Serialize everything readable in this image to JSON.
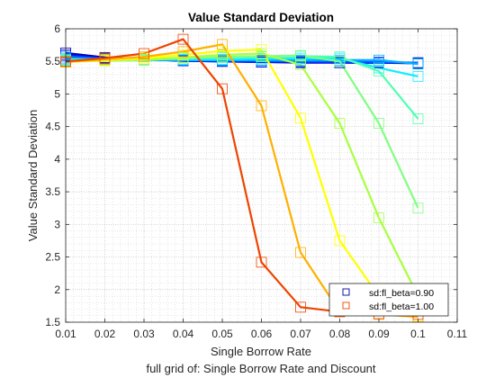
{
  "chart_data": {
    "type": "line",
    "title": "Value Standard Deviation",
    "xlabel": "Single Borrow Rate",
    "ylabel": "Value Standard Deviation",
    "caption": "full grid of: Single Borrow Rate and Discount",
    "xlim": [
      0.01,
      0.11
    ],
    "ylim": [
      1.5,
      6
    ],
    "xticks": [
      "0.01",
      "0.02",
      "0.03",
      "0.04",
      "0.05",
      "0.06",
      "0.07",
      "0.08",
      "0.09",
      "0.1",
      "0.11"
    ],
    "yticks": [
      "1.5",
      "2",
      "2.5",
      "3",
      "3.5",
      "4",
      "4.5",
      "5",
      "5.5",
      "6"
    ],
    "grid": true,
    "minor_grid": true,
    "legend_position": "bottom-right",
    "legend": [
      {
        "label": "sd:fl_beta=0.90",
        "color": "#00009e"
      },
      {
        "label": "sd:fl_beta=1.00",
        "color": "#ee4400"
      }
    ],
    "x": [
      0.01,
      0.02,
      0.03,
      0.04,
      0.05,
      0.06,
      0.07,
      0.08,
      0.09,
      0.1
    ],
    "series": [
      {
        "color": "#00009e",
        "values": [
          5.63,
          5.56,
          5.53,
          5.51,
          5.5,
          5.49,
          5.48,
          5.48,
          5.48,
          5.47
        ]
      },
      {
        "color": "#0010ff",
        "values": [
          5.6,
          5.55,
          5.53,
          5.51,
          5.5,
          5.49,
          5.49,
          5.48,
          5.48,
          5.48
        ]
      },
      {
        "color": "#0060ff",
        "values": [
          5.58,
          5.54,
          5.53,
          5.52,
          5.51,
          5.51,
          5.5,
          5.5,
          5.49,
          5.48
        ]
      },
      {
        "color": "#00b0ff",
        "values": [
          5.55,
          5.53,
          5.52,
          5.52,
          5.52,
          5.52,
          5.52,
          5.52,
          5.52,
          5.46
        ]
      },
      {
        "color": "#10eeff",
        "values": [
          5.53,
          5.53,
          5.53,
          5.53,
          5.53,
          5.54,
          5.55,
          5.55,
          5.4,
          5.27
        ]
      },
      {
        "color": "#50ffb0",
        "values": [
          5.52,
          5.52,
          5.53,
          5.55,
          5.56,
          5.57,
          5.58,
          5.57,
          5.35,
          4.62
        ]
      },
      {
        "color": "#80ff80",
        "values": [
          5.51,
          5.51,
          5.52,
          5.55,
          5.57,
          5.58,
          5.59,
          5.5,
          4.55,
          3.25
        ]
      },
      {
        "color": "#a8ff40",
        "values": [
          5.5,
          5.51,
          5.53,
          5.56,
          5.6,
          5.62,
          5.45,
          4.55,
          3.1,
          1.9
        ]
      },
      {
        "color": "#ffff00",
        "values": [
          5.49,
          5.52,
          5.55,
          5.6,
          5.66,
          5.68,
          4.63,
          2.75,
          1.9,
          1.6
        ]
      },
      {
        "color": "#ffb000",
        "values": [
          5.49,
          5.53,
          5.57,
          5.65,
          5.76,
          4.82,
          2.57,
          1.66,
          1.62,
          1.58
        ]
      },
      {
        "color": "#ee4400",
        "values": [
          5.5,
          5.55,
          5.62,
          5.84,
          5.08,
          2.42,
          1.73,
          1.66,
          1.63,
          1.62
        ]
      }
    ]
  }
}
